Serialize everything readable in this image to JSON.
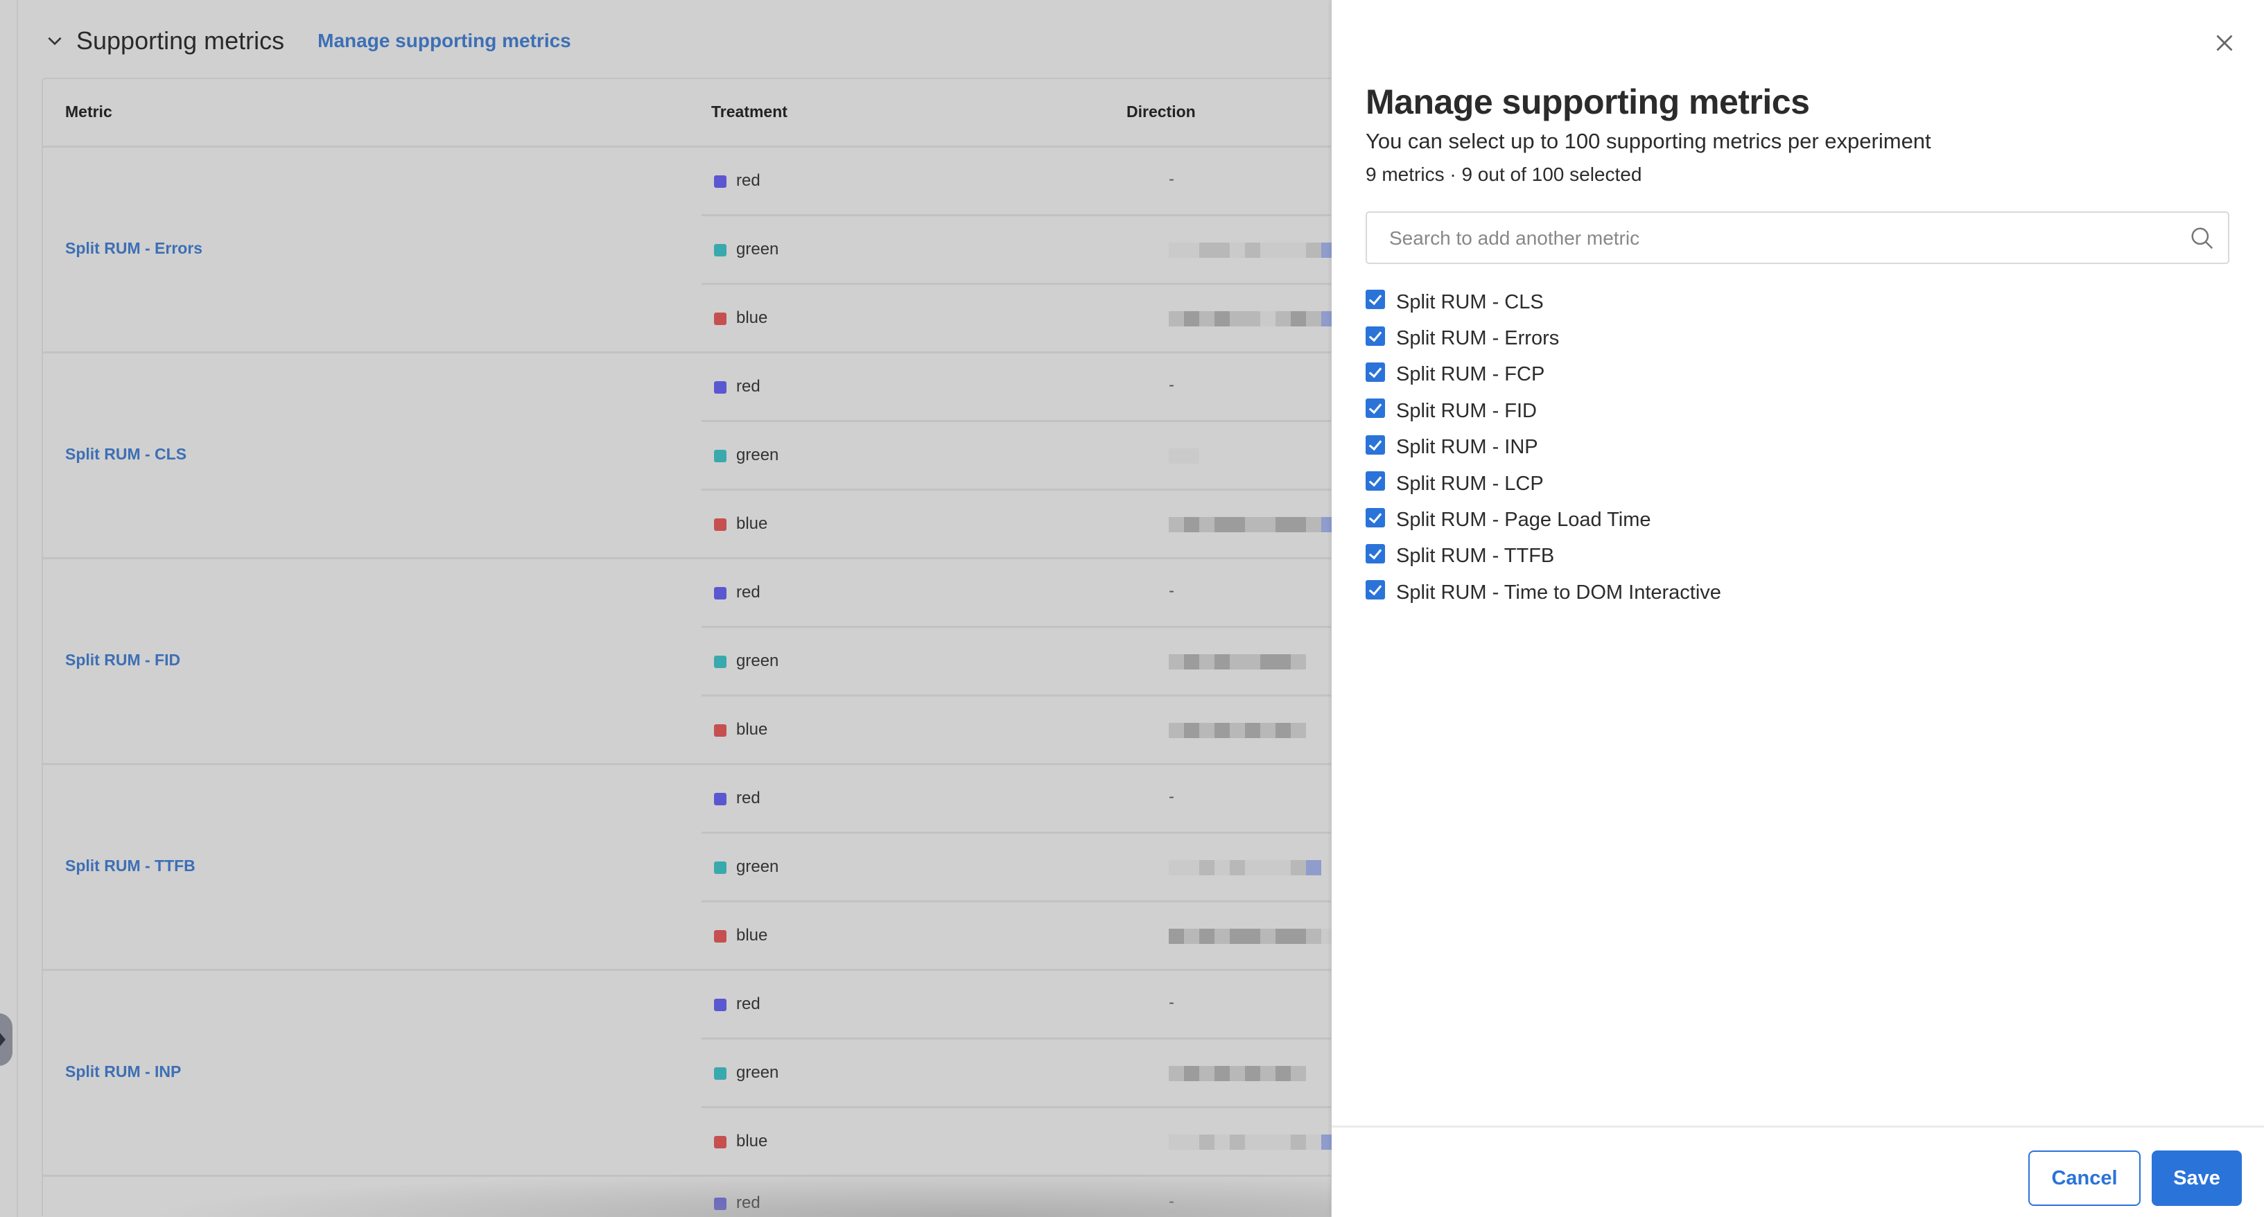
{
  "section": {
    "title": "Supporting metrics",
    "manage_link": "Manage supporting metrics"
  },
  "table": {
    "headers": {
      "metric": "Metric",
      "treatment": "Treatment",
      "direction": "Direction"
    },
    "treatments": [
      {
        "name": "red",
        "color": "#5b57d1"
      },
      {
        "name": "green",
        "color": "#3aa9ad"
      },
      {
        "name": "blue",
        "color": "#c65050"
      }
    ],
    "empty_direction": "-",
    "rows": [
      {
        "metric": "Split RUM - Errors"
      },
      {
        "metric": "Split RUM - CLS"
      },
      {
        "metric": "Split RUM - FID"
      },
      {
        "metric": "Split RUM - TTFB"
      },
      {
        "metric": "Split RUM - INP"
      },
      {
        "metric": ""
      }
    ]
  },
  "panel": {
    "title": "Manage supporting metrics",
    "subtitle": "You can select up to 100 supporting metrics per experiment",
    "count": "9 metrics · 9 out of 100 selected",
    "search_placeholder": "Search to add another metric",
    "metrics": [
      {
        "label": "Split RUM - CLS",
        "checked": true
      },
      {
        "label": "Split RUM - Errors",
        "checked": true
      },
      {
        "label": "Split RUM - FCP",
        "checked": true
      },
      {
        "label": "Split RUM - FID",
        "checked": true
      },
      {
        "label": "Split RUM - INP",
        "checked": true
      },
      {
        "label": "Split RUM - LCP",
        "checked": true
      },
      {
        "label": "Split RUM - Page Load Time",
        "checked": true
      },
      {
        "label": "Split RUM - TTFB",
        "checked": true
      },
      {
        "label": "Split RUM - Time to DOM Interactive",
        "checked": true
      }
    ],
    "cancel_label": "Cancel",
    "save_label": "Save",
    "accent_color": "#2a73d9"
  }
}
